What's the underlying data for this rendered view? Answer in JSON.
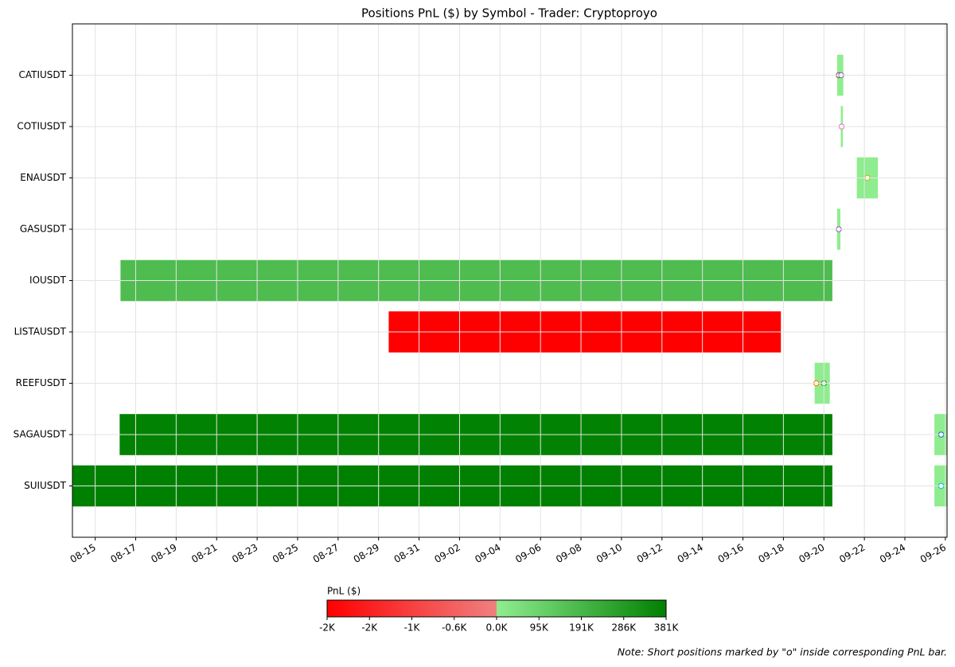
{
  "chart_data": {
    "type": "timeline",
    "title": "Positions PnL ($) by Symbol - Trader: Cryptoproyo",
    "note": "Note: Short positions marked by \"o\" inside corresponding PnL bar.",
    "xlim": [
      "08-13 21:00",
      "09-26 02:00"
    ],
    "xticks": [
      "08-15",
      "08-17",
      "08-19",
      "08-21",
      "08-23",
      "08-25",
      "08-27",
      "08-29",
      "08-31",
      "09-02",
      "09-04",
      "09-06",
      "09-08",
      "09-10",
      "09-12",
      "09-14",
      "09-16",
      "09-18",
      "09-20",
      "09-22",
      "09-24",
      "09-26"
    ],
    "grid": true,
    "rows": [
      {
        "name": "CATIUSDT",
        "bars": [
          {
            "start": "09-20 15:40",
            "end": "09-20 23:00",
            "pnl": 3000,
            "shorts": [
              {
                "x": "09-20 17:40",
                "color": "#8c564b"
              },
              {
                "x": "09-20 20:30",
                "color": "#9467bd"
              }
            ]
          }
        ]
      },
      {
        "name": "COTIUSDT",
        "bars": [
          {
            "start": "09-20 20:00",
            "end": "09-20 22:30",
            "pnl": 2000,
            "shorts": [
              {
                "x": "09-20 21:00",
                "color": "#e377c2"
              }
            ]
          }
        ]
      },
      {
        "name": "ENAUSDT",
        "bars": [
          {
            "start": "09-21 15:00",
            "end": "09-22 16:00",
            "pnl": 4000,
            "shorts": [
              {
                "x": "09-22 03:30",
                "color": "#bcbd22"
              }
            ]
          }
        ]
      },
      {
        "name": "GASUSDT",
        "bars": [
          {
            "start": "09-20 15:40",
            "end": "09-20 19:30",
            "pnl": 2000,
            "shorts": [
              {
                "x": "09-20 17:40",
                "color": "#9467bd"
              }
            ]
          }
        ]
      },
      {
        "name": "IOUSDT",
        "bars": [
          {
            "start": "08-16 06:00",
            "end": "09-20 10:00",
            "pnl": 172000,
            "shorts": []
          }
        ]
      },
      {
        "name": "LISTAUSDT",
        "bars": [
          {
            "start": "08-29 12:00",
            "end": "09-17 21:00",
            "pnl": -2400,
            "shorts": []
          }
        ]
      },
      {
        "name": "REEFUSDT",
        "bars": [
          {
            "start": "09-19 13:00",
            "end": "09-20 07:00",
            "pnl": 3000,
            "shorts": [
              {
                "x": "09-19 15:00",
                "color": "#ff7f0e"
              },
              {
                "x": "09-20 00:00",
                "color": "#2ca02c"
              }
            ]
          }
        ]
      },
      {
        "name": "SAGAUSDT",
        "bars": [
          {
            "start": "08-16 05:00",
            "end": "09-20 10:00",
            "pnl": 375000,
            "shorts": []
          },
          {
            "start": "09-25 11:00",
            "end": "09-26 02:00",
            "pnl": 3000,
            "shorts": [
              {
                "x": "09-25 19:00",
                "color": "#1f77b4"
              }
            ]
          }
        ]
      },
      {
        "name": "SUIUSDT",
        "bars": [
          {
            "start": "08-13 21:00",
            "end": "09-20 10:00",
            "pnl": 381000,
            "shorts": []
          },
          {
            "start": "09-25 11:00",
            "end": "09-26 02:00",
            "pnl": 3000,
            "shorts": [
              {
                "x": "09-25 19:00",
                "color": "#17becf"
              }
            ]
          }
        ]
      }
    ],
    "colorbar": {
      "label": "PnL ($)",
      "lim": [
        -2400,
        381000
      ],
      "negative_colors": [
        "#ff0000",
        "#f08080"
      ],
      "positive_colors": [
        "#90ee90",
        "#008000"
      ],
      "ticks": [
        {
          "value": -2400,
          "label": "-2K"
        },
        {
          "value": -1800,
          "label": "-2K"
        },
        {
          "value": -1200,
          "label": "-1K"
        },
        {
          "value": -600,
          "label": "-0.6K"
        },
        {
          "value": 0,
          "label": "0.0K"
        },
        {
          "value": 95250,
          "label": "95K"
        },
        {
          "value": 190500,
          "label": "191K"
        },
        {
          "value": 285750,
          "label": "286K"
        },
        {
          "value": 381000,
          "label": "381K"
        }
      ]
    }
  }
}
